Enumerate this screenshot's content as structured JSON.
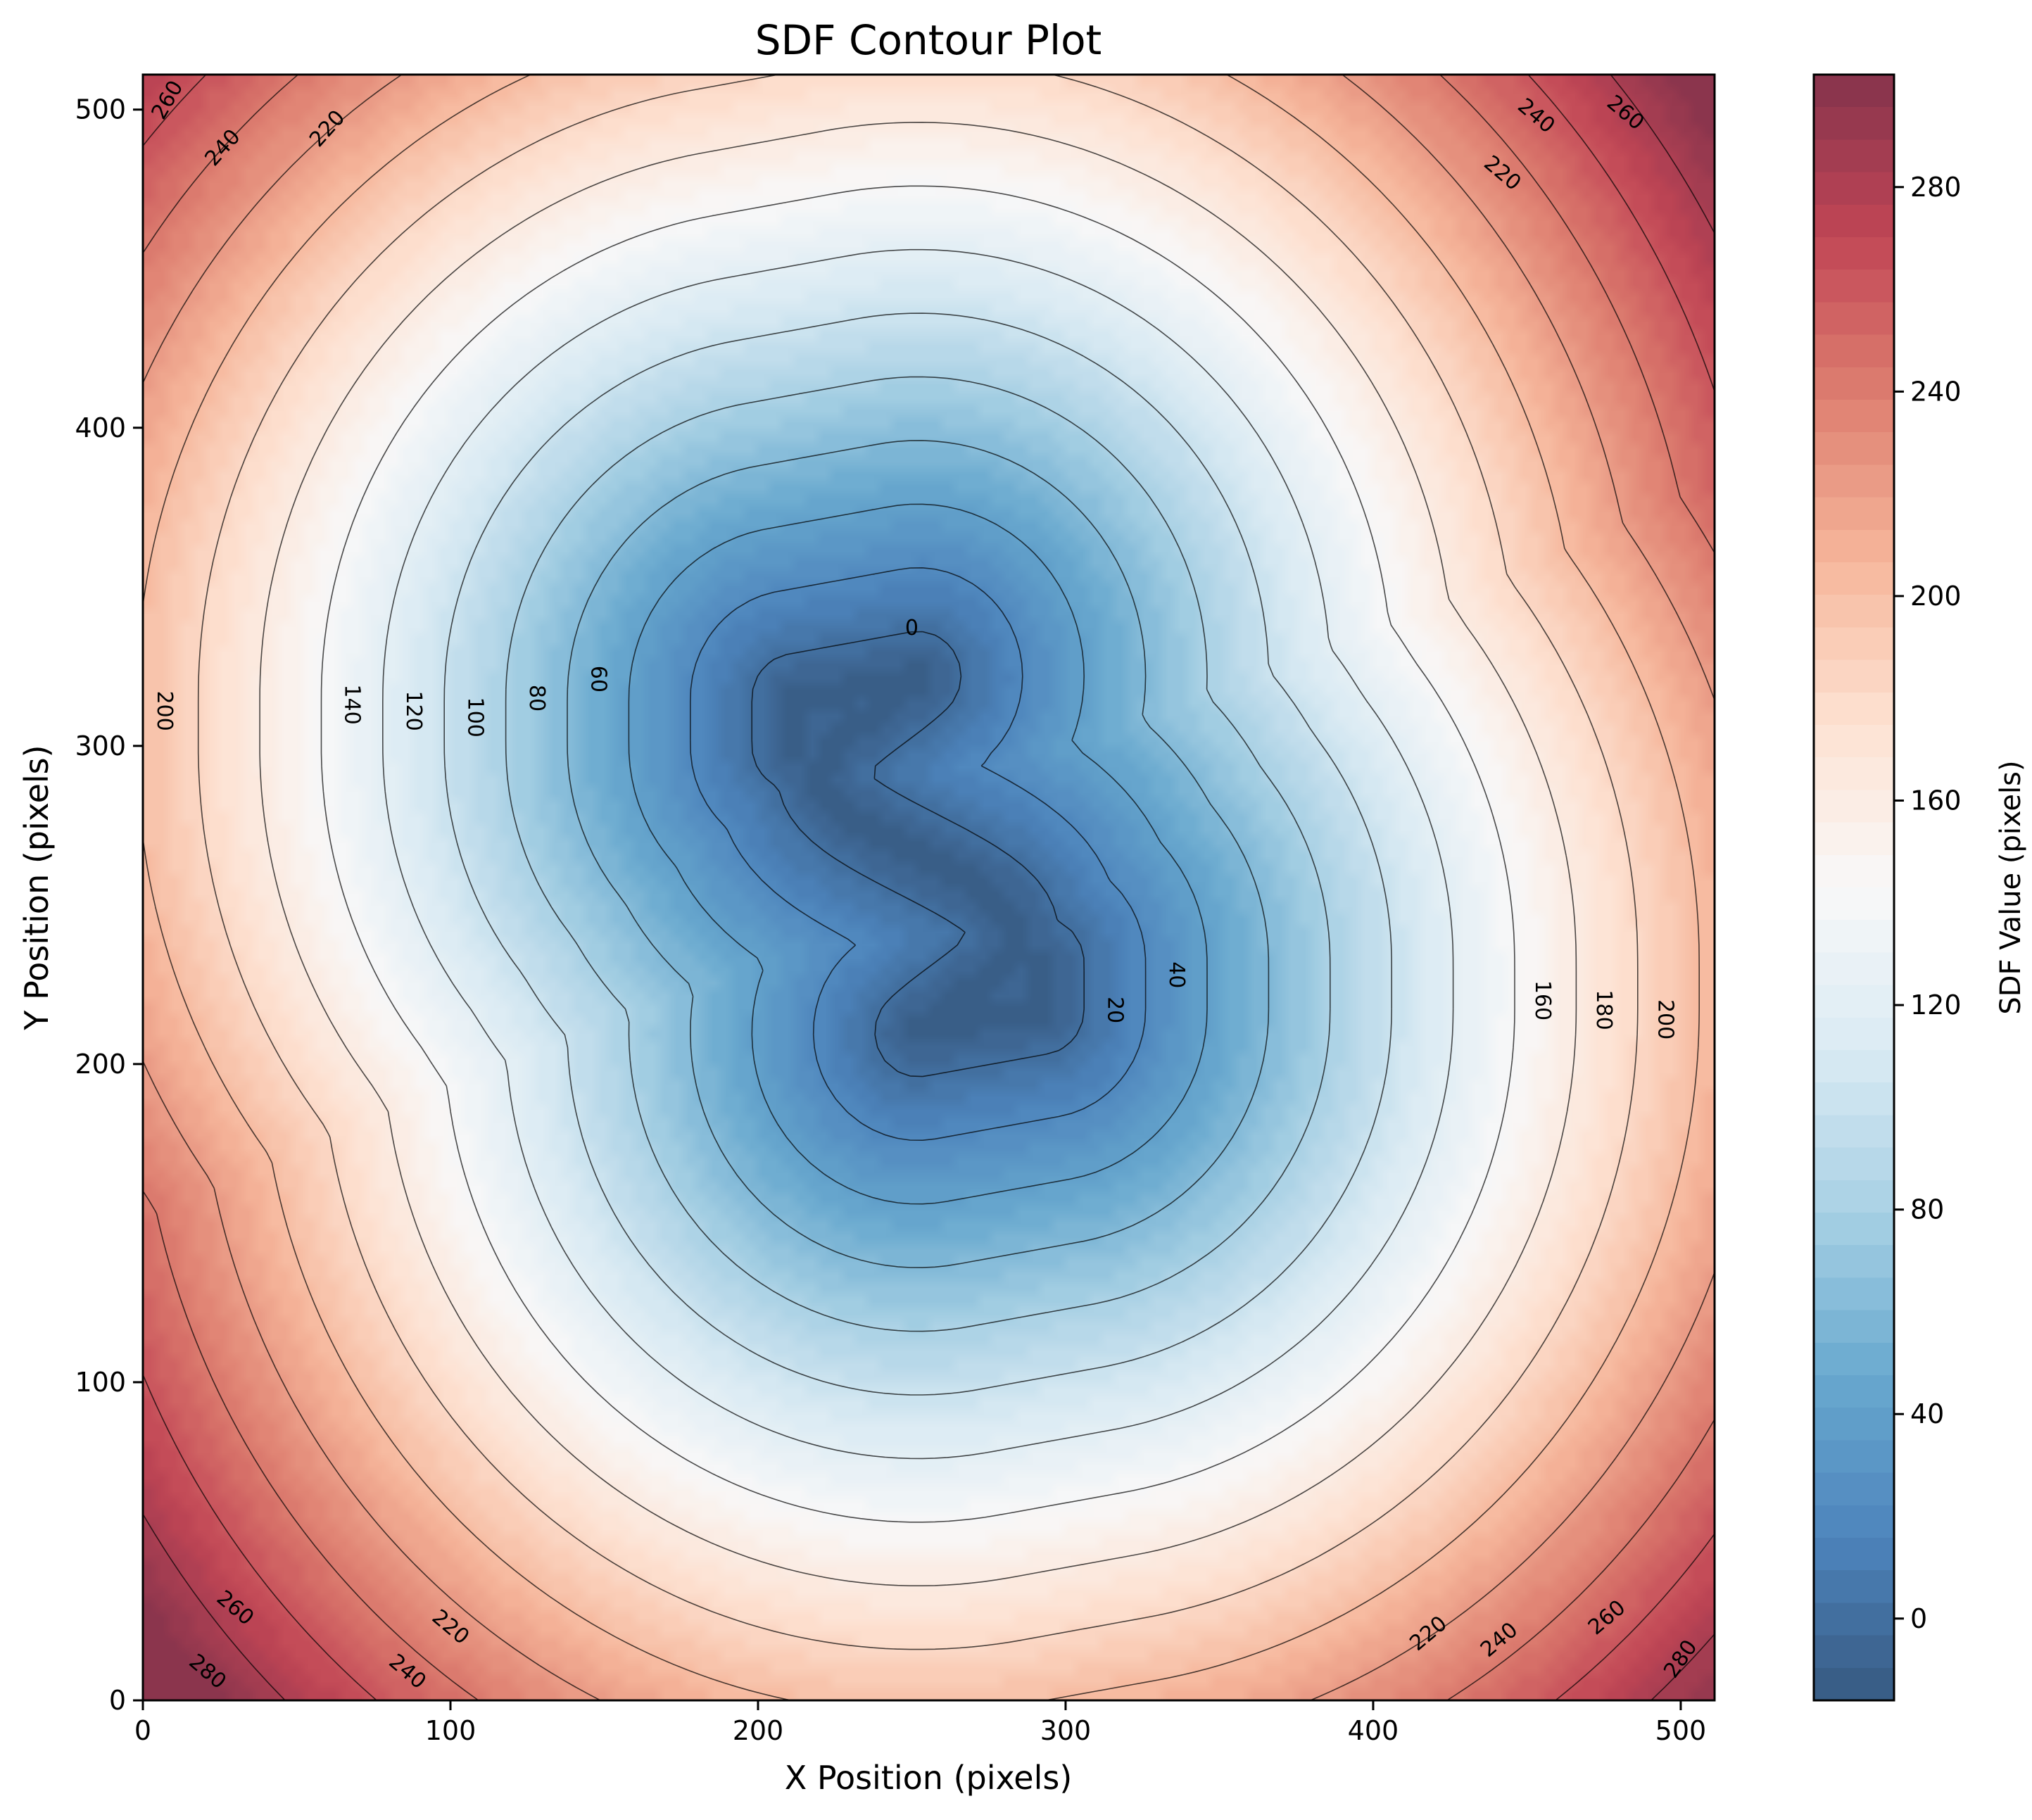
{
  "chart_data": {
    "type": "contour",
    "title": "SDF Contour Plot",
    "xlabel": "X Position (pixels)",
    "ylabel": "Y Position (pixels)",
    "xlim": [
      0,
      511
    ],
    "ylim": [
      0,
      511
    ],
    "x_ticks": [
      0,
      100,
      200,
      300,
      400,
      500
    ],
    "y_ticks": [
      0,
      100,
      200,
      300,
      400,
      500
    ],
    "colormap": "RdBu_r",
    "colorbar": {
      "label": "SDF Value (pixels)",
      "range": [
        -16,
        302
      ],
      "ticks": [
        0,
        40,
        80,
        120,
        160,
        200,
        240,
        280
      ]
    },
    "contour_levels": [
      0,
      20,
      40,
      60,
      80,
      100,
      120,
      140,
      160,
      180,
      200,
      220,
      240,
      260,
      280
    ],
    "contour_labels": [
      {
        "text": "0",
        "x": 250,
        "y": 337,
        "angle": 0
      },
      {
        "text": "20",
        "x": 316,
        "y": 217,
        "angle": 90
      },
      {
        "text": "40",
        "x": 336,
        "y": 228,
        "angle": 90
      },
      {
        "text": "60",
        "x": 148,
        "y": 321,
        "angle": 90
      },
      {
        "text": "80",
        "x": 128,
        "y": 315,
        "angle": 90
      },
      {
        "text": "100",
        "x": 108,
        "y": 309,
        "angle": 90
      },
      {
        "text": "120",
        "x": 88,
        "y": 311,
        "angle": 90
      },
      {
        "text": "140",
        "x": 68,
        "y": 313,
        "angle": 90
      },
      {
        "text": "160",
        "x": 455,
        "y": 220,
        "angle": 90
      },
      {
        "text": "180",
        "x": 475,
        "y": 217,
        "angle": 90
      },
      {
        "text": "200",
        "x": 7,
        "y": 311,
        "angle": 90
      },
      {
        "text": "200",
        "x": 495,
        "y": 214,
        "angle": 90
      },
      {
        "text": "220",
        "x": 60,
        "y": 494,
        "angle": -48
      },
      {
        "text": "240",
        "x": 26,
        "y": 488,
        "angle": -48
      },
      {
        "text": "260",
        "x": 8,
        "y": 503,
        "angle": -60
      },
      {
        "text": "220",
        "x": 442,
        "y": 480,
        "angle": 40
      },
      {
        "text": "240",
        "x": 453,
        "y": 498,
        "angle": 40
      },
      {
        "text": "260",
        "x": 482,
        "y": 499,
        "angle": 40
      },
      {
        "text": "220",
        "x": 100,
        "y": 23,
        "angle": 40
      },
      {
        "text": "240",
        "x": 86,
        "y": 9,
        "angle": 40
      },
      {
        "text": "260",
        "x": 30,
        "y": 29,
        "angle": 40
      },
      {
        "text": "280",
        "x": 21,
        "y": 9,
        "angle": 40
      },
      {
        "text": "220",
        "x": 418,
        "y": 21,
        "angle": -40
      },
      {
        "text": "240",
        "x": 441,
        "y": 19,
        "angle": -40
      },
      {
        "text": "260",
        "x": 476,
        "y": 26,
        "angle": -40
      },
      {
        "text": "280",
        "x": 500,
        "y": 13,
        "angle": -55
      }
    ],
    "shape": {
      "description_glyph": "S",
      "zero_level_x_range": [
        207,
        297
      ],
      "zero_level_y_range": [
        205,
        335
      ]
    }
  }
}
